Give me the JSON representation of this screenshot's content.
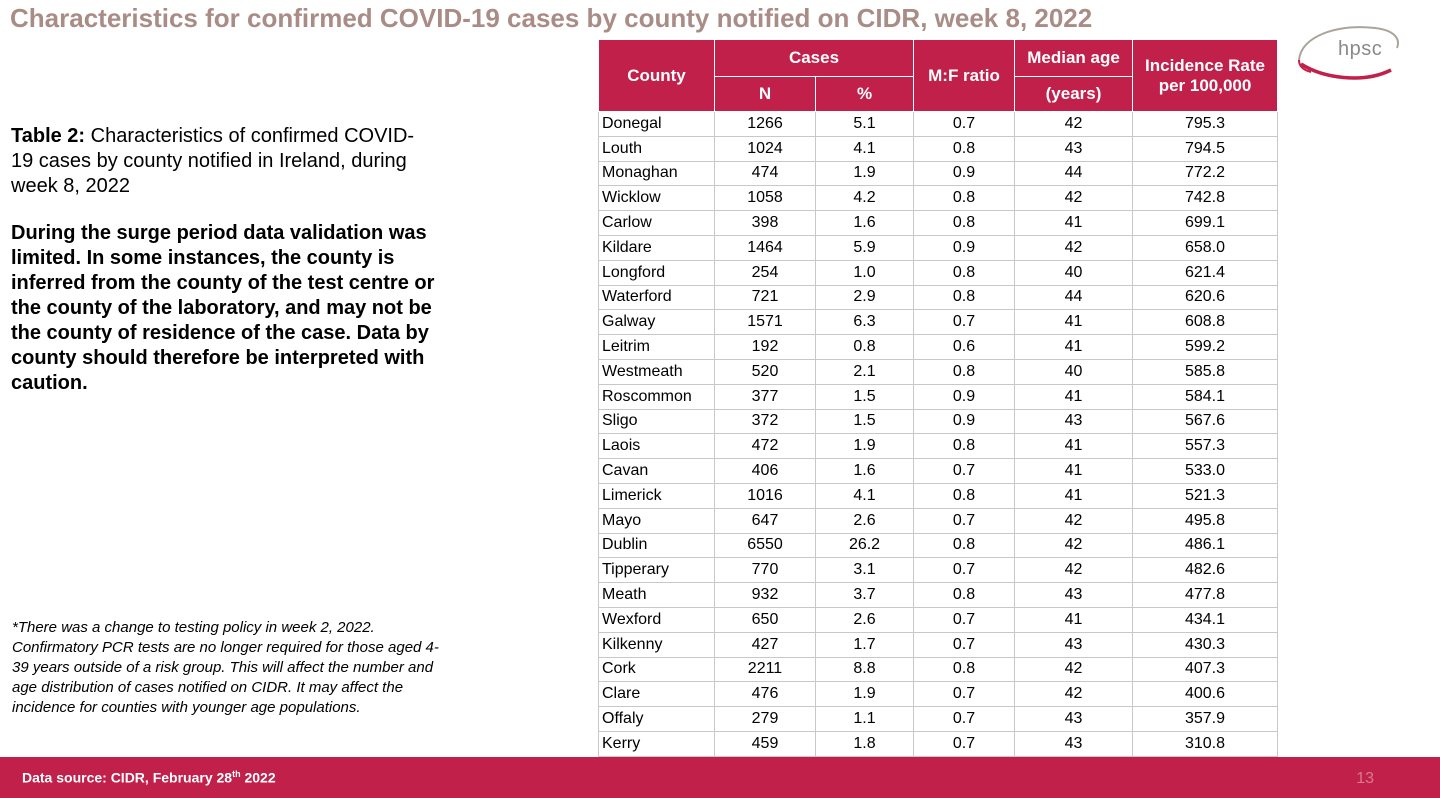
{
  "title": "Characteristics for confirmed COVID-19 cases by county notified on CIDR, week 8, 2022",
  "logo_text": "hpsc",
  "caption": {
    "label": "Table 2:",
    "text": " Characteristics of confirmed COVID-19 cases by county notified in Ireland, during week 8, 2022"
  },
  "warning": "During the surge period data validation was limited. In some instances, the county is inferred from the county of the test centre or the county of the laboratory, and may not be the county of residence of the case. Data by county should therefore be interpreted with caution.",
  "footnote": "*There was a change to testing policy in week 2, 2022. Confirmatory PCR tests are no longer required for those aged 4-39 years outside of a risk group. This will affect the number and age distribution of cases notified on CIDR. It may affect the incidence for counties with younger age populations.",
  "table": {
    "headers": {
      "county": "County",
      "cases": "Cases",
      "n": "N",
      "pct": "%",
      "mf": "M:F ratio",
      "median_top": "Median age",
      "median_bottom": "(years)",
      "incidence_line1": "Incidence Rate",
      "incidence_line2": "per 100,000"
    },
    "rows": [
      [
        "Donegal",
        "1266",
        "5.1",
        "0.7",
        "42",
        "795.3"
      ],
      [
        "Louth",
        "1024",
        "4.1",
        "0.8",
        "43",
        "794.5"
      ],
      [
        "Monaghan",
        "474",
        "1.9",
        "0.9",
        "44",
        "772.2"
      ],
      [
        "Wicklow",
        "1058",
        "4.2",
        "0.8",
        "42",
        "742.8"
      ],
      [
        "Carlow",
        "398",
        "1.6",
        "0.8",
        "41",
        "699.1"
      ],
      [
        "Kildare",
        "1464",
        "5.9",
        "0.9",
        "42",
        "658.0"
      ],
      [
        "Longford",
        "254",
        "1.0",
        "0.8",
        "40",
        "621.4"
      ],
      [
        "Waterford",
        "721",
        "2.9",
        "0.8",
        "44",
        "620.6"
      ],
      [
        "Galway",
        "1571",
        "6.3",
        "0.7",
        "41",
        "608.8"
      ],
      [
        "Leitrim",
        "192",
        "0.8",
        "0.6",
        "41",
        "599.2"
      ],
      [
        "Westmeath",
        "520",
        "2.1",
        "0.8",
        "40",
        "585.8"
      ],
      [
        "Roscommon",
        "377",
        "1.5",
        "0.9",
        "41",
        "584.1"
      ],
      [
        "Sligo",
        "372",
        "1.5",
        "0.9",
        "43",
        "567.6"
      ],
      [
        "Laois",
        "472",
        "1.9",
        "0.8",
        "41",
        "557.3"
      ],
      [
        "Cavan",
        "406",
        "1.6",
        "0.7",
        "41",
        "533.0"
      ],
      [
        "Limerick",
        "1016",
        "4.1",
        "0.8",
        "41",
        "521.3"
      ],
      [
        "Mayo",
        "647",
        "2.6",
        "0.7",
        "42",
        "495.8"
      ],
      [
        "Dublin",
        "6550",
        "26.2",
        "0.8",
        "42",
        "486.1"
      ],
      [
        "Tipperary",
        "770",
        "3.1",
        "0.7",
        "42",
        "482.6"
      ],
      [
        "Meath",
        "932",
        "3.7",
        "0.8",
        "43",
        "477.8"
      ],
      [
        "Wexford",
        "650",
        "2.6",
        "0.7",
        "41",
        "434.1"
      ],
      [
        "Kilkenny",
        "427",
        "1.7",
        "0.7",
        "43",
        "430.3"
      ],
      [
        "Cork",
        "2211",
        "8.8",
        "0.8",
        "42",
        "407.3"
      ],
      [
        "Clare",
        "476",
        "1.9",
        "0.7",
        "42",
        "400.6"
      ],
      [
        "Offaly",
        "279",
        "1.1",
        "0.7",
        "43",
        "357.9"
      ],
      [
        "Kerry",
        "459",
        "1.8",
        "0.7",
        "43",
        "310.8"
      ]
    ]
  },
  "footer": {
    "source_prefix": "Data source: CIDR, February 28",
    "source_sup": "th",
    "source_suffix": " 2022",
    "page_number": "13"
  },
  "colors": {
    "accent": "#c0204a",
    "title": "#a98c85"
  }
}
